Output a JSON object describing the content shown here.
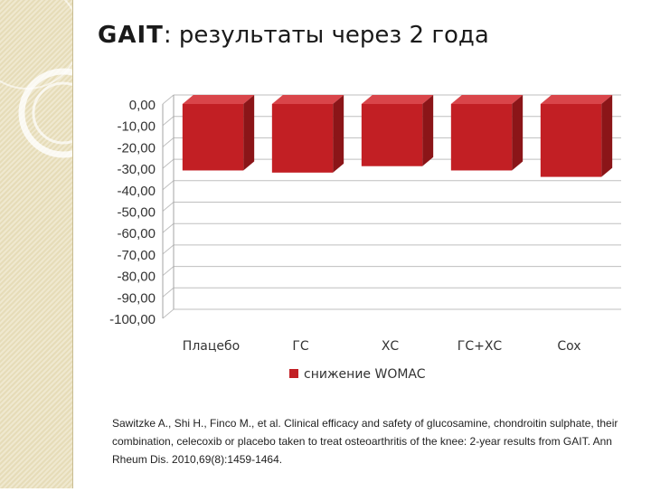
{
  "slide": {
    "title_brand": "GAIT",
    "title_rest": ": результаты через 2 года",
    "citation": "Sawitzke A., Shi H., Finco M., et al. Clinical efficacy and safety of glucosamine, chondroitin sulphate, their combination, celecoxib or placebo taken to treat osteoarthritis of the knee: 2-year results from GAIT. Ann Rheum Dis. 2010,69(8):1459-1464."
  },
  "colors": {
    "bar_front": "#c21f24",
    "bar_side": "#8b1518",
    "bar_top": "#d9454a",
    "grid": "#bfbfbf"
  },
  "chart_data": {
    "type": "bar",
    "categories": [
      "Плацебо",
      "ГС",
      "ХС",
      "ГС+ХС",
      "Сox"
    ],
    "series": [
      {
        "name": "снижение WOMAC",
        "values": [
          -31,
          -32,
          -29,
          -31,
          -34
        ]
      }
    ],
    "yticks": [
      "0,00",
      "-10,00",
      "-20,00",
      "-30,00",
      "-40,00",
      "-50,00",
      "-60,00",
      "-70,00",
      "-80,00",
      "-90,00",
      "-100,00"
    ],
    "ylim": [
      -100,
      0
    ],
    "grid": true,
    "legend_position": "bottom",
    "style": "3d"
  }
}
